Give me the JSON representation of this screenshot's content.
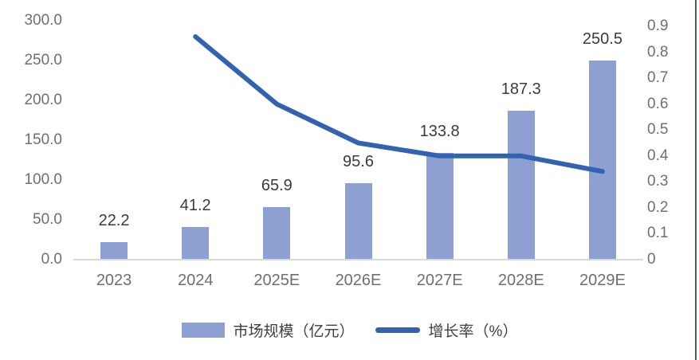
{
  "chart_data": {
    "type": "bar+line",
    "title": "",
    "categories": [
      "2023",
      "2024",
      "2025E",
      "2026E",
      "2027E",
      "2028E",
      "2029E"
    ],
    "series": [
      {
        "name": "市场规模（亿元）",
        "type": "bar",
        "axis": "left",
        "values": [
          22.2,
          41.2,
          65.9,
          95.6,
          133.8,
          187.3,
          250.5
        ],
        "color": "#8e9fd1"
      },
      {
        "name": "增长率（%）",
        "type": "line",
        "axis": "right",
        "values": [
          null,
          0.86,
          0.6,
          0.45,
          0.4,
          0.4,
          0.34
        ],
        "color": "#3263b1"
      }
    ],
    "data_labels": [
      "22.2",
      "41.2",
      "65.9",
      "95.6",
      "133.8",
      "187.3",
      "250.5"
    ],
    "left_axis": {
      "min": 0,
      "max": 300,
      "ticks": [
        "300.0",
        "250.0",
        "200.0",
        "150.0",
        "100.0",
        "50.0",
        "0.0"
      ]
    },
    "right_axis": {
      "min": 0,
      "max": 0.9,
      "ticks": [
        "0.9",
        "0.8",
        "0.7",
        "0.6",
        "0.5",
        "0.4",
        "0.3",
        "0.2",
        "0.1",
        "0"
      ]
    },
    "legend": {
      "position": "bottom",
      "items": [
        {
          "label": "市场规模（亿元）",
          "swatch": "bar"
        },
        {
          "label": "增长率（%）",
          "swatch": "line"
        }
      ]
    },
    "grid": "off"
  },
  "colors": {
    "bar_fill": "#8e9fd1",
    "line_stroke": "#3263b1",
    "axis_label": "#6f6f6f",
    "data_label": "#3b3b3b",
    "axis_line": "#d9d9d9",
    "right_border": "#46654a",
    "background": "#ffffff"
  }
}
